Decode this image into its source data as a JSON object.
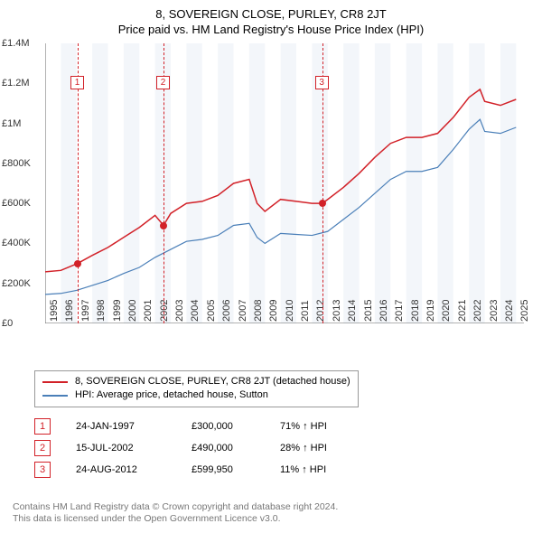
{
  "title": "8, SOVEREIGN CLOSE, PURLEY, CR8 2JT",
  "subtitle": "Price paid vs. HM Land Registry's House Price Index (HPI)",
  "chart": {
    "type": "line",
    "background_color": "#ffffff",
    "alt_band_color": "#f3f6fa",
    "xlim": [
      1995,
      2025.5
    ],
    "ylim": [
      0,
      1400000
    ],
    "ytick_step": 200000,
    "yticks": [
      "£0",
      "£200K",
      "£400K",
      "£600K",
      "£800K",
      "£1M",
      "£1.2M",
      "£1.4M"
    ],
    "xticks": [
      1995,
      1996,
      1997,
      1998,
      1999,
      2000,
      2001,
      2002,
      2003,
      2004,
      2005,
      2006,
      2007,
      2008,
      2009,
      2010,
      2011,
      2012,
      2013,
      2014,
      2015,
      2016,
      2017,
      2018,
      2019,
      2020,
      2021,
      2022,
      2023,
      2024,
      2025
    ],
    "series_property": {
      "label": "8, SOVEREIGN CLOSE, PURLEY, CR8 2JT (detached house)",
      "color": "#d22128",
      "width": 1.5,
      "data": [
        [
          1995,
          258000
        ],
        [
          1996,
          265000
        ],
        [
          1997.07,
          300000
        ],
        [
          1998,
          340000
        ],
        [
          1999,
          380000
        ],
        [
          2000,
          430000
        ],
        [
          2001,
          480000
        ],
        [
          2002,
          540000
        ],
        [
          2002.54,
          490000
        ],
        [
          2003,
          550000
        ],
        [
          2004,
          600000
        ],
        [
          2005,
          610000
        ],
        [
          2006,
          640000
        ],
        [
          2007,
          700000
        ],
        [
          2008,
          720000
        ],
        [
          2008.5,
          600000
        ],
        [
          2009,
          560000
        ],
        [
          2010,
          620000
        ],
        [
          2011,
          610000
        ],
        [
          2012,
          600000
        ],
        [
          2012.65,
          599950
        ],
        [
          2013,
          620000
        ],
        [
          2014,
          680000
        ],
        [
          2015,
          750000
        ],
        [
          2016,
          830000
        ],
        [
          2017,
          900000
        ],
        [
          2018,
          930000
        ],
        [
          2019,
          930000
        ],
        [
          2020,
          950000
        ],
        [
          2021,
          1030000
        ],
        [
          2022,
          1130000
        ],
        [
          2022.7,
          1170000
        ],
        [
          2023,
          1110000
        ],
        [
          2024,
          1090000
        ],
        [
          2025,
          1120000
        ]
      ]
    },
    "series_hpi": {
      "label": "HPI: Average price, detached house, Sutton",
      "color": "#4a7fb8",
      "width": 1.2,
      "data": [
        [
          1995,
          145000
        ],
        [
          1996,
          150000
        ],
        [
          1997,
          165000
        ],
        [
          1998,
          190000
        ],
        [
          1999,
          215000
        ],
        [
          2000,
          250000
        ],
        [
          2001,
          280000
        ],
        [
          2002,
          330000
        ],
        [
          2003,
          370000
        ],
        [
          2004,
          410000
        ],
        [
          2005,
          420000
        ],
        [
          2006,
          440000
        ],
        [
          2007,
          490000
        ],
        [
          2008,
          500000
        ],
        [
          2008.5,
          430000
        ],
        [
          2009,
          400000
        ],
        [
          2010,
          450000
        ],
        [
          2011,
          445000
        ],
        [
          2012,
          440000
        ],
        [
          2013,
          460000
        ],
        [
          2014,
          520000
        ],
        [
          2015,
          580000
        ],
        [
          2016,
          650000
        ],
        [
          2017,
          720000
        ],
        [
          2018,
          760000
        ],
        [
          2019,
          760000
        ],
        [
          2020,
          780000
        ],
        [
          2021,
          870000
        ],
        [
          2022,
          970000
        ],
        [
          2022.7,
          1020000
        ],
        [
          2023,
          960000
        ],
        [
          2024,
          950000
        ],
        [
          2025,
          980000
        ]
      ]
    },
    "sales_markers": [
      {
        "n": "1",
        "x": 1997.07,
        "y": 300000,
        "box_y": 1200000,
        "color": "#d22128"
      },
      {
        "n": "2",
        "x": 2002.54,
        "y": 490000,
        "box_y": 1200000,
        "color": "#d22128"
      },
      {
        "n": "3",
        "x": 2012.65,
        "y": 599950,
        "box_y": 1200000,
        "color": "#d22128"
      }
    ]
  },
  "sales": [
    {
      "n": "1",
      "date": "24-JAN-1997",
      "price": "£300,000",
      "pct": "71% ↑ HPI"
    },
    {
      "n": "2",
      "date": "15-JUL-2002",
      "price": "£490,000",
      "pct": "28% ↑ HPI"
    },
    {
      "n": "3",
      "date": "24-AUG-2012",
      "price": "£599,950",
      "pct": "11% ↑ HPI"
    }
  ],
  "marker_color": "#d22128",
  "footer_line1": "Contains HM Land Registry data © Crown copyright and database right 2024.",
  "footer_line2": "This data is licensed under the Open Government Licence v3.0."
}
